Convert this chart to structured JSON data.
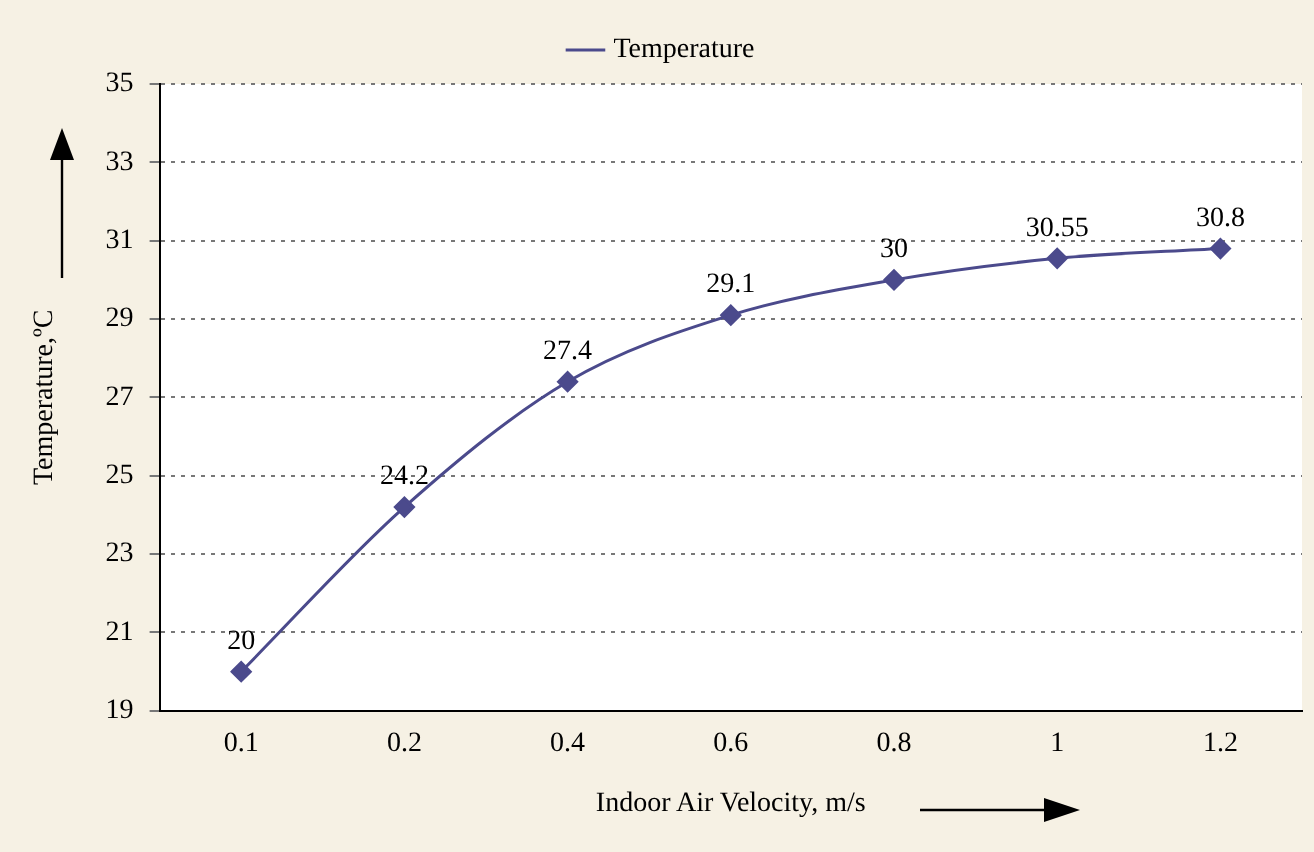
{
  "chart_data": {
    "type": "line",
    "xlabel": "Indoor Air Velocity, m/s",
    "ylabel": "Temperature,ºC",
    "categories": [
      "0.1",
      "0.2",
      "0.4",
      "0.6",
      "0.8",
      "1",
      "1.2"
    ],
    "series": [
      {
        "name": "Temperature",
        "color": "#4b4a8c",
        "values": [
          20,
          24.2,
          27.4,
          29.1,
          30,
          30.55,
          30.8
        ]
      }
    ],
    "ylim": [
      19,
      35
    ],
    "yticks": [
      19,
      21,
      23,
      25,
      27,
      29,
      31,
      33,
      35
    ],
    "grid": "y",
    "legend": "top",
    "marker": "diamond",
    "line_style": "solid",
    "data_labels": true
  }
}
